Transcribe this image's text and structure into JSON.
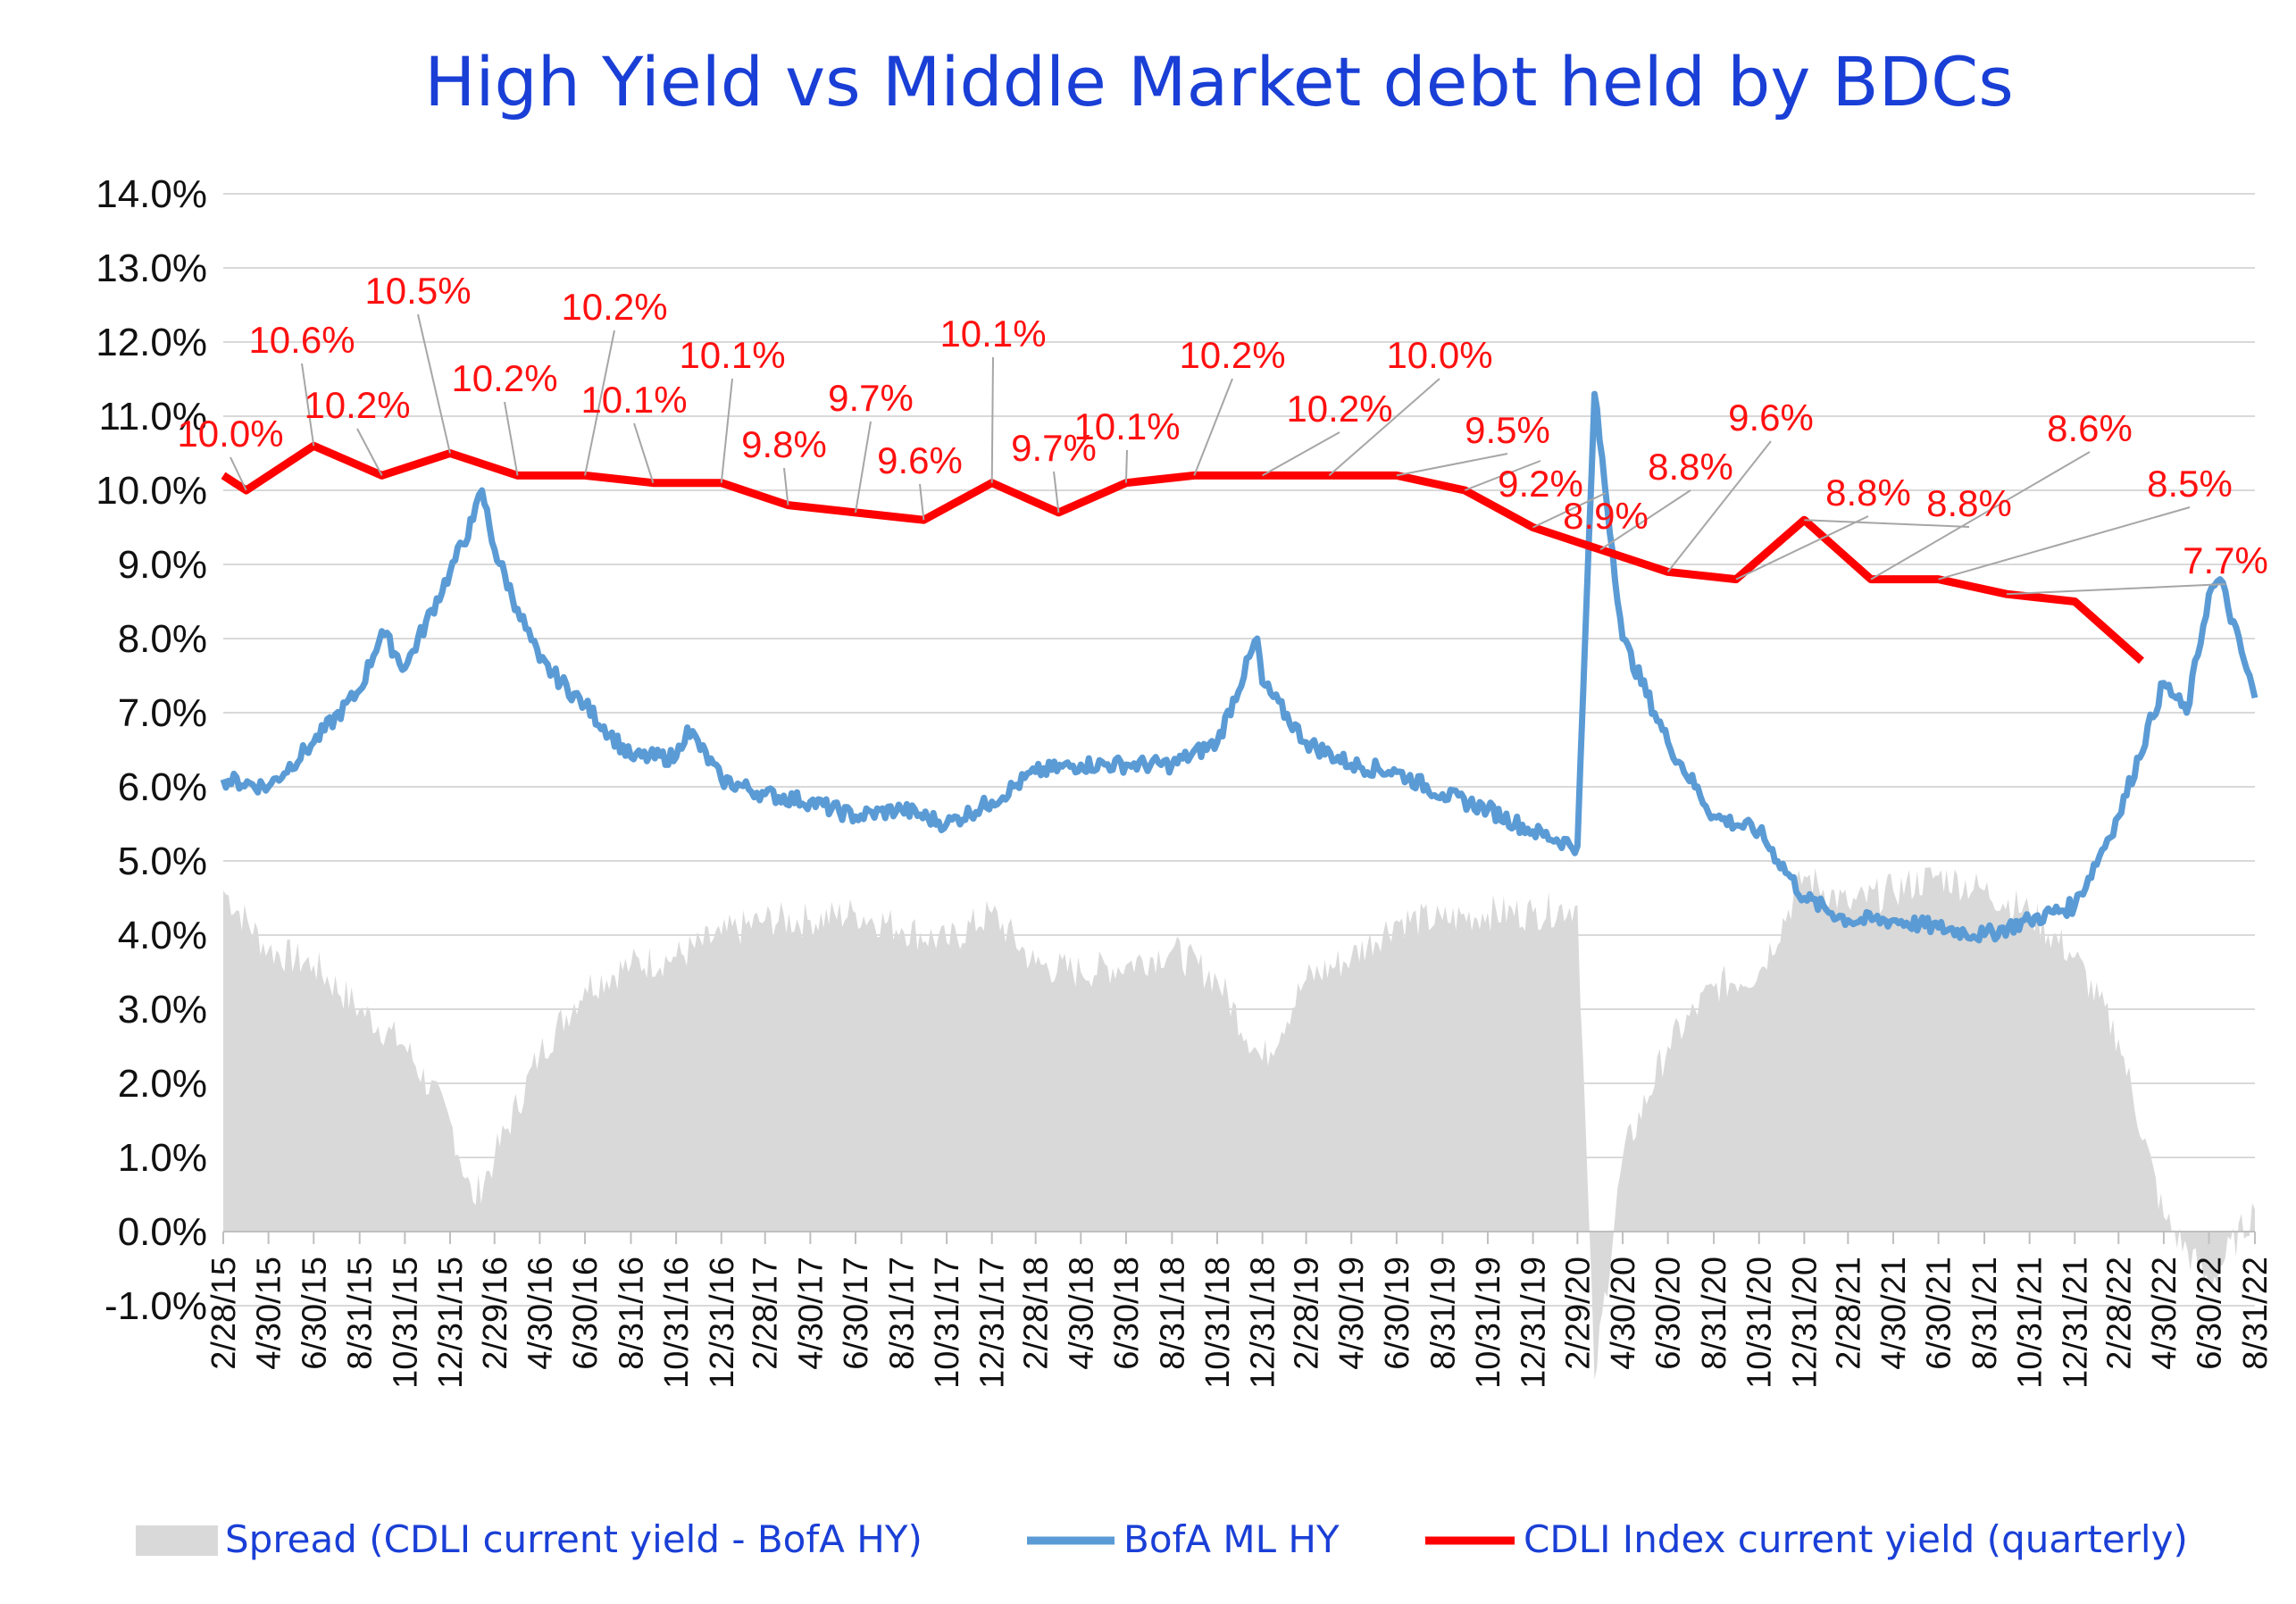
{
  "colors": {
    "title": "#1a3fd6",
    "spread": "#d9d9d9",
    "hy": "#5b9bd5",
    "cdli": "#ff0000",
    "grid": "#d9d9d9",
    "legend_text": "#1a3fd6"
  },
  "chart_data": {
    "type": "line",
    "title": "High Yield  vs  Middle Market debt held by BDCs",
    "ylim": [
      -1,
      14
    ],
    "y_ticks": [
      "-1.0%",
      "0.0%",
      "1.0%",
      "2.0%",
      "3.0%",
      "4.0%",
      "5.0%",
      "6.0%",
      "7.0%",
      "8.0%",
      "9.0%",
      "10.0%",
      "11.0%",
      "12.0%",
      "13.0%",
      "14.0%"
    ],
    "x_ticks": [
      "2/28/15",
      "4/30/15",
      "6/30/15",
      "8/31/15",
      "10/31/15",
      "12/31/15",
      "2/29/16",
      "4/30/16",
      "6/30/16",
      "8/31/16",
      "10/31/16",
      "12/31/16",
      "2/28/17",
      "4/30/17",
      "6/30/17",
      "8/31/17",
      "10/31/17",
      "12/31/17",
      "2/28/18",
      "4/30/18",
      "6/30/18",
      "8/31/18",
      "10/31/18",
      "12/31/18",
      "2/28/19",
      "4/30/19",
      "6/30/19",
      "8/31/19",
      "10/31/19",
      "12/31/19",
      "2/29/20",
      "4/30/20",
      "6/30/20",
      "8/31/20",
      "10/31/20",
      "12/31/20",
      "2/28/21",
      "4/30/21",
      "6/30/21",
      "8/31/21",
      "10/31/21",
      "12/31/21",
      "2/28/22",
      "4/30/22",
      "6/30/22",
      "8/31/22"
    ],
    "grid": true,
    "legend_position": "bottom",
    "series": [
      {
        "name": "Spread (CDLI current yield - BofA HY)",
        "type": "area",
        "points": [
          [
            "2/28/15",
            4.6
          ],
          [
            "4/30/15",
            3.8
          ],
          [
            "6/30/15",
            3.6
          ],
          [
            "8/31/15",
            3.0
          ],
          [
            "10/31/15",
            2.5
          ],
          [
            "12/31/15",
            1.5
          ],
          [
            "1/31/16",
            0.4
          ],
          [
            "2/29/16",
            1.0
          ],
          [
            "4/30/16",
            2.4
          ],
          [
            "6/30/16",
            3.3
          ],
          [
            "8/31/16",
            3.6
          ],
          [
            "10/31/16",
            3.7
          ],
          [
            "12/31/16",
            4.0
          ],
          [
            "2/28/17",
            4.2
          ],
          [
            "4/30/17",
            4.2
          ],
          [
            "6/30/17",
            4.3
          ],
          [
            "8/31/17",
            4.1
          ],
          [
            "10/31/17",
            3.9
          ],
          [
            "12/31/17",
            4.3
          ],
          [
            "2/28/18",
            3.6
          ],
          [
            "4/30/18",
            3.5
          ],
          [
            "6/30/18",
            3.6
          ],
          [
            "8/31/18",
            3.8
          ],
          [
            "10/31/18",
            3.4
          ],
          [
            "12/31/18",
            2.3
          ],
          [
            "2/28/19",
            3.4
          ],
          [
            "4/30/19",
            3.7
          ],
          [
            "6/30/19",
            4.2
          ],
          [
            "8/31/19",
            4.2
          ],
          [
            "10/31/19",
            4.3
          ],
          [
            "12/31/19",
            4.3
          ],
          [
            "2/29/20",
            4.4
          ],
          [
            "3/23/20",
            -2.0
          ],
          [
            "4/30/20",
            1.0
          ],
          [
            "6/30/20",
            2.5
          ],
          [
            "8/31/20",
            3.3
          ],
          [
            "10/31/20",
            3.5
          ],
          [
            "12/31/20",
            4.8
          ],
          [
            "2/28/21",
            4.4
          ],
          [
            "4/30/21",
            4.6
          ],
          [
            "6/30/21",
            4.8
          ],
          [
            "8/31/21",
            4.6
          ],
          [
            "10/31/21",
            4.3
          ],
          [
            "12/31/21",
            3.7
          ],
          [
            "2/28/22",
            2.6
          ],
          [
            "4/30/22",
            0.2
          ],
          [
            "6/30/22",
            -0.7
          ],
          [
            "8/31/22",
            0.3
          ]
        ]
      },
      {
        "name": "BofA ML HY",
        "type": "line",
        "points": [
          [
            "2/28/15",
            6.1
          ],
          [
            "4/30/15",
            6.0
          ],
          [
            "6/30/15",
            6.6
          ],
          [
            "8/31/15",
            7.3
          ],
          [
            "9/30/15",
            8.1
          ],
          [
            "10/31/15",
            7.6
          ],
          [
            "12/31/15",
            8.9
          ],
          [
            "1/31/16",
            9.6
          ],
          [
            "2/12/16",
            10.0
          ],
          [
            "2/29/16",
            9.2
          ],
          [
            "3/31/16",
            8.4
          ],
          [
            "4/30/16",
            7.7
          ],
          [
            "6/30/16",
            7.1
          ],
          [
            "8/31/16",
            6.4
          ],
          [
            "10/31/16",
            6.4
          ],
          [
            "11/15/16",
            6.8
          ],
          [
            "12/31/16",
            6.1
          ],
          [
            "2/28/17",
            5.9
          ],
          [
            "4/30/17",
            5.8
          ],
          [
            "6/30/17",
            5.6
          ],
          [
            "8/31/17",
            5.7
          ],
          [
            "10/31/17",
            5.5
          ],
          [
            "12/31/17",
            5.8
          ],
          [
            "2/28/18",
            6.2
          ],
          [
            "4/30/18",
            6.3
          ],
          [
            "6/30/18",
            6.3
          ],
          [
            "8/31/18",
            6.3
          ],
          [
            "10/31/18",
            6.6
          ],
          [
            "12/24/18",
            8.0
          ],
          [
            "12/31/18",
            7.4
          ],
          [
            "2/28/19",
            6.6
          ],
          [
            "4/30/19",
            6.3
          ],
          [
            "6/30/19",
            6.2
          ],
          [
            "8/31/19",
            5.9
          ],
          [
            "10/31/19",
            5.7
          ],
          [
            "12/31/19",
            5.4
          ],
          [
            "2/29/20",
            5.2
          ],
          [
            "3/23/20",
            11.3
          ],
          [
            "4/30/20",
            8.0
          ],
          [
            "6/30/20",
            6.6
          ],
          [
            "8/31/20",
            5.6
          ],
          [
            "10/31/20",
            5.4
          ],
          [
            "12/31/20",
            4.5
          ],
          [
            "2/28/21",
            4.2
          ],
          [
            "4/30/21",
            4.2
          ],
          [
            "6/30/21",
            4.1
          ],
          [
            "8/31/21",
            4.0
          ],
          [
            "10/31/21",
            4.2
          ],
          [
            "12/31/21",
            4.4
          ],
          [
            "2/28/22",
            5.6
          ],
          [
            "4/30/22",
            7.4
          ],
          [
            "5/31/22",
            7.0
          ],
          [
            "6/30/22",
            8.6
          ],
          [
            "7/15/22",
            8.8
          ],
          [
            "8/31/22",
            7.2
          ]
        ]
      },
      {
        "name": "CDLI Index current yield (quarterly)",
        "type": "line",
        "points": [
          [
            "2/28/15",
            10.2
          ],
          [
            "3/31/15",
            10.0
          ],
          [
            "6/30/15",
            10.6
          ],
          [
            "9/30/15",
            10.2
          ],
          [
            "12/31/15",
            10.5
          ],
          [
            "3/31/16",
            10.2
          ],
          [
            "6/30/16",
            10.2
          ],
          [
            "9/30/16",
            10.1
          ],
          [
            "12/31/16",
            10.1
          ],
          [
            "3/31/17",
            9.8
          ],
          [
            "6/30/17",
            9.7
          ],
          [
            "9/30/17",
            9.6
          ],
          [
            "12/31/17",
            10.1
          ],
          [
            "3/31/18",
            9.7
          ],
          [
            "6/30/18",
            10.1
          ],
          [
            "9/30/18",
            10.2
          ],
          [
            "12/31/18",
            10.2
          ],
          [
            "3/31/19",
            10.2
          ],
          [
            "6/30/19",
            10.2
          ],
          [
            "9/30/19",
            10.0
          ],
          [
            "12/31/19",
            9.5
          ],
          [
            "3/31/20",
            9.2
          ],
          [
            "6/30/20",
            8.9
          ],
          [
            "9/30/20",
            8.8
          ],
          [
            "12/31/20",
            9.6
          ],
          [
            "3/31/21",
            8.8
          ],
          [
            "6/30/21",
            8.8
          ],
          [
            "9/30/21",
            8.6
          ],
          [
            "12/31/21",
            8.5
          ],
          [
            "3/31/22",
            7.7
          ]
        ],
        "data_labels": [
          "10.0%",
          "10.6%",
          "10.2%",
          "10.5%",
          "10.2%",
          "10.2%",
          "10.1%",
          "10.1%",
          "9.8%",
          "9.7%",
          "9.6%",
          "10.1%",
          "9.7%",
          "10.1%",
          "10.2%",
          "10.2%",
          "10.0%",
          "9.5%",
          "9.2%",
          "8.9%",
          "8.8%",
          "9.6%",
          "8.8%",
          "8.8%",
          "8.6%",
          "8.5%",
          "7.7%"
        ]
      }
    ]
  }
}
